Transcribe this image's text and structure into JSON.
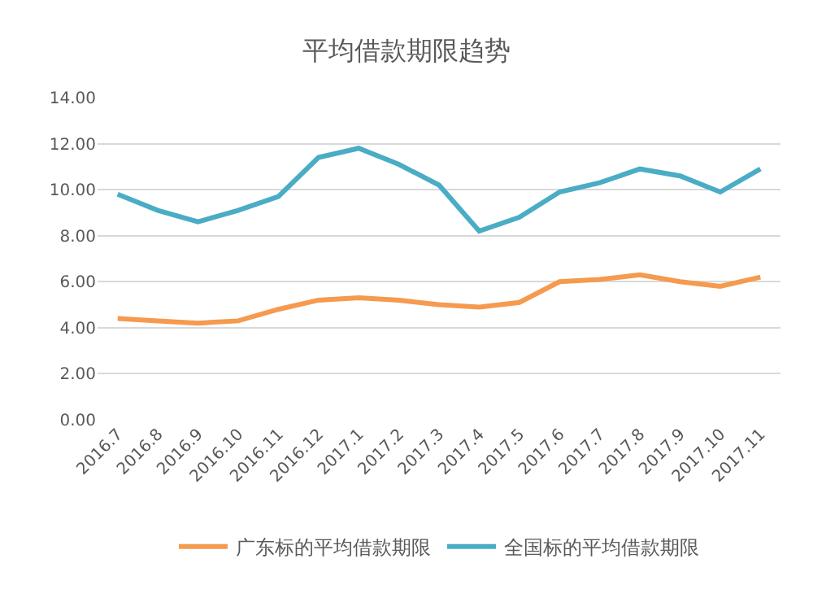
{
  "chart_data": {
    "type": "line",
    "title": "平均借款期限趋势",
    "categories": [
      "2016.7",
      "2016.8",
      "2016.9",
      "2016.10",
      "2016.11",
      "2016.12",
      "2017.1",
      "2017.2",
      "2017.3",
      "2017.4",
      "2017.5",
      "2017.6",
      "2017.7",
      "2017.8",
      "2017.9",
      "2017.10",
      "2017.11"
    ],
    "series": [
      {
        "name": "广东标的平均借款期限",
        "color": "#f59a4f",
        "values": [
          4.4,
          4.3,
          4.2,
          4.3,
          4.8,
          5.2,
          5.3,
          5.2,
          5.0,
          4.9,
          5.1,
          6.0,
          6.1,
          6.3,
          6.0,
          5.8,
          6.2
        ]
      },
      {
        "name": "全国标的平均借款期限",
        "color": "#4aacc5",
        "values": [
          9.8,
          9.1,
          8.6,
          9.1,
          9.7,
          11.4,
          11.8,
          11.1,
          10.2,
          8.2,
          8.8,
          9.9,
          10.3,
          10.9,
          10.6,
          9.9,
          10.9
        ]
      }
    ],
    "ylim": [
      0,
      14
    ],
    "yticks": [
      {
        "value": 0,
        "label": "0.00"
      },
      {
        "value": 2,
        "label": "2.00"
      },
      {
        "value": 4,
        "label": "4.00"
      },
      {
        "value": 6,
        "label": "6.00"
      },
      {
        "value": 8,
        "label": "8.00"
      },
      {
        "value": 10,
        "label": "10.00"
      },
      {
        "value": 12,
        "label": "12.00"
      },
      {
        "value": 14,
        "label": "14.00"
      }
    ],
    "grid": "y",
    "legend": "bottom",
    "marker": "none",
    "line_style": "solid"
  }
}
